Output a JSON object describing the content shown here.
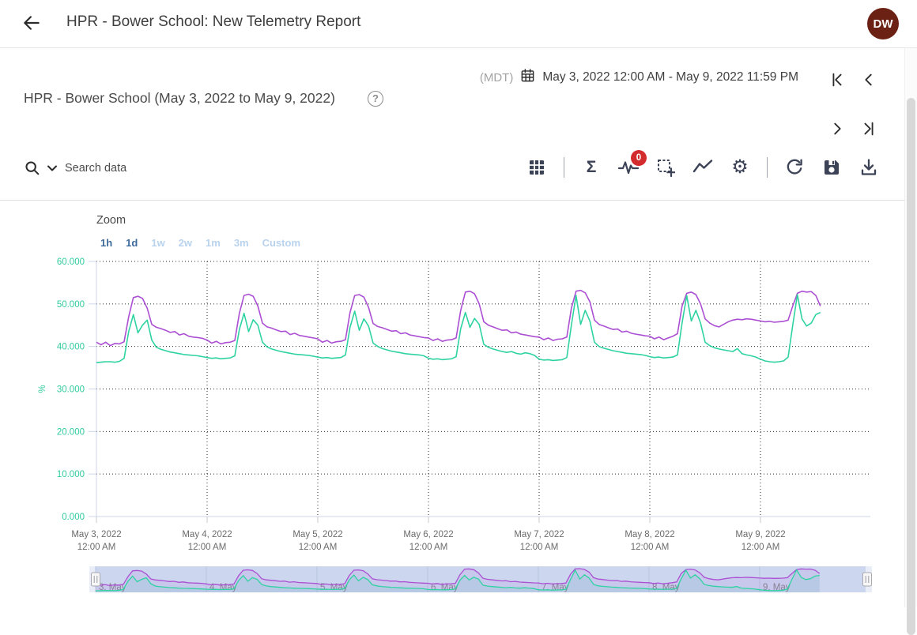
{
  "app_bar": {
    "title": "HPR - Bower School: New Telemetry Report",
    "avatar_initials": "DW",
    "avatar_bg": "#6b2114"
  },
  "date_bar": {
    "timezone": "(MDT)",
    "range": "May 3, 2022 12:00 AM - May 9, 2022 11:59 PM"
  },
  "report": {
    "title": "HPR - Bower School (May 3, 2022 to May 9, 2022)",
    "help_glyph": "?"
  },
  "search": {
    "placeholder": "Search data"
  },
  "toolbar": {
    "badge_count": "0",
    "sigma_glyph": "Σ",
    "gear_glyph": "⚙",
    "icons": [
      "table-icon",
      "sigma-icon",
      "pulse-icon",
      "select-add-icon",
      "trend-icon",
      "gear-icon",
      "refresh-icon",
      "save-icon",
      "download-icon"
    ]
  },
  "zoom_controls": {
    "label": "Zoom",
    "options": [
      {
        "label": "1h",
        "state": "active"
      },
      {
        "label": "1d",
        "state": "active"
      },
      {
        "label": "1w",
        "state": "disabled"
      },
      {
        "label": "2w",
        "state": "disabled"
      },
      {
        "label": "1m",
        "state": "disabled"
      },
      {
        "label": "3m",
        "state": "disabled"
      },
      {
        "label": "Custom",
        "state": "disabled"
      }
    ]
  },
  "chart_data": {
    "type": "line",
    "title": "",
    "xlabel": "",
    "ylabel": "%",
    "ylim": [
      0,
      60
    ],
    "grid": "dotted",
    "legend": "none",
    "yticks": [
      "60.000",
      "50.000",
      "40.000",
      "30.000",
      "20.000",
      "10.000",
      "0.000"
    ],
    "ytick_values": [
      60,
      50,
      40,
      30,
      20,
      10,
      0
    ],
    "x_start": "May 3, 2022 12:00 AM",
    "x_end": "May 9, 2022 11:59 PM",
    "x_interval_hours": 1,
    "xtick_labels": [
      {
        "date": "May 3, 2022",
        "time": "12:00 AM"
      },
      {
        "date": "May 4, 2022",
        "time": "12:00 AM"
      },
      {
        "date": "May 5, 2022",
        "time": "12:00 AM"
      },
      {
        "date": "May 6, 2022",
        "time": "12:00 AM"
      },
      {
        "date": "May 7, 2022",
        "time": "12:00 AM"
      },
      {
        "date": "May 8, 2022",
        "time": "12:00 AM"
      },
      {
        "date": "May 9, 2022",
        "time": "12:00 AM"
      }
    ],
    "navigator_labels": [
      "3. May",
      "4. May",
      "5. May",
      "6. May",
      "7. May",
      "8. May",
      "9. May"
    ],
    "series": [
      {
        "id": "series-1",
        "color": "#ab4fd3",
        "values": [
          41.0,
          40.4,
          41.0,
          40.2,
          40.7,
          40.6,
          41.1,
          47.0,
          51.5,
          51.8,
          51.3,
          49.0,
          45.2,
          44.5,
          44.2,
          43.8,
          43.3,
          43.5,
          42.7,
          43.0,
          42.4,
          42.2,
          42.1,
          41.9,
          41.5,
          40.8,
          41.2,
          40.6,
          40.9,
          41.0,
          41.4,
          47.8,
          52.0,
          52.3,
          51.8,
          49.5,
          45.5,
          44.6,
          44.3,
          43.9,
          43.5,
          43.6,
          42.8,
          43.1,
          42.6,
          42.4,
          42.2,
          42.0,
          41.8,
          41.0,
          41.4,
          40.8,
          41.1,
          41.2,
          41.6,
          48.0,
          52.0,
          52.2,
          51.6,
          49.2,
          45.4,
          44.7,
          44.4,
          44.0,
          43.6,
          43.7,
          43.0,
          43.2,
          42.7,
          42.5,
          42.3,
          42.1,
          42.0,
          41.4,
          41.8,
          41.2,
          41.5,
          41.6,
          42.0,
          48.5,
          52.8,
          53.0,
          52.4,
          50.0,
          45.8,
          45.0,
          44.6,
          44.2,
          43.8,
          43.9,
          43.2,
          43.4,
          42.9,
          42.7,
          42.5,
          42.3,
          42.2,
          41.6,
          42.0,
          41.4,
          41.7,
          41.8,
          42.2,
          49.0,
          53.0,
          53.2,
          52.6,
          50.5,
          46.2,
          45.2,
          44.8,
          44.4,
          44.0,
          44.1,
          43.4,
          43.6,
          43.1,
          42.9,
          42.7,
          42.5,
          42.4,
          41.8,
          42.2,
          41.6,
          42.0,
          42.4,
          43.0,
          49.5,
          52.5,
          52.8,
          52.2,
          50.0,
          46.5,
          45.5,
          44.9,
          44.6,
          45.2,
          45.8,
          46.2,
          46.4,
          46.3,
          46.5,
          46.4,
          46.2,
          46.0,
          45.8,
          45.9,
          45.7,
          45.8,
          45.9,
          46.2,
          49.5,
          52.5,
          53.0,
          52.8,
          52.9,
          52.0,
          49.5
        ]
      },
      {
        "id": "series-2",
        "color": "#2fd3a2",
        "values": [
          36.2,
          36.3,
          36.4,
          36.4,
          36.3,
          36.5,
          37.2,
          43.5,
          47.5,
          43.2,
          45.0,
          46.2,
          41.5,
          39.8,
          39.3,
          39.0,
          38.7,
          38.5,
          38.3,
          38.1,
          38.0,
          37.9,
          37.8,
          37.6,
          37.4,
          37.2,
          37.3,
          37.1,
          37.2,
          37.3,
          37.8,
          44.0,
          47.8,
          43.5,
          46.3,
          45.0,
          41.0,
          39.9,
          39.4,
          39.1,
          38.8,
          38.6,
          38.4,
          38.2,
          38.1,
          38.0,
          37.9,
          37.7,
          37.5,
          37.3,
          37.4,
          37.2,
          37.3,
          37.4,
          38.0,
          44.5,
          48.3,
          43.8,
          46.5,
          44.8,
          40.8,
          40.0,
          39.5,
          39.2,
          38.9,
          38.7,
          38.5,
          38.3,
          38.2,
          38.1,
          38.0,
          37.8,
          37.2,
          37.0,
          37.1,
          36.9,
          37.0,
          37.1,
          37.6,
          44.2,
          48.0,
          44.5,
          46.6,
          45.2,
          40.5,
          39.8,
          39.4,
          39.1,
          38.8,
          38.6,
          38.8,
          38.4,
          38.2,
          38.5,
          38.3,
          37.9,
          37.0,
          36.8,
          36.9,
          36.7,
          36.8,
          36.9,
          37.4,
          45.0,
          52.0,
          45.2,
          48.5,
          46.0,
          41.0,
          40.0,
          39.6,
          39.3,
          39.0,
          38.8,
          38.6,
          38.4,
          38.3,
          38.2,
          38.1,
          37.9,
          37.6,
          37.4,
          37.5,
          37.3,
          37.4,
          37.5,
          38.0,
          45.5,
          52.0,
          46.0,
          48.5,
          45.5,
          41.0,
          40.2,
          39.7,
          39.4,
          39.2,
          39.0,
          38.8,
          39.5,
          38.3,
          38.0,
          37.8,
          37.5,
          37.0,
          36.6,
          36.4,
          36.3,
          36.4,
          36.6,
          37.5,
          45.0,
          52.2,
          46.5,
          44.8,
          45.5,
          47.5,
          48.0
        ]
      }
    ],
    "navigator": {
      "selected_bg": "#ccd6ef",
      "track_bg": "#e8edf8"
    }
  }
}
